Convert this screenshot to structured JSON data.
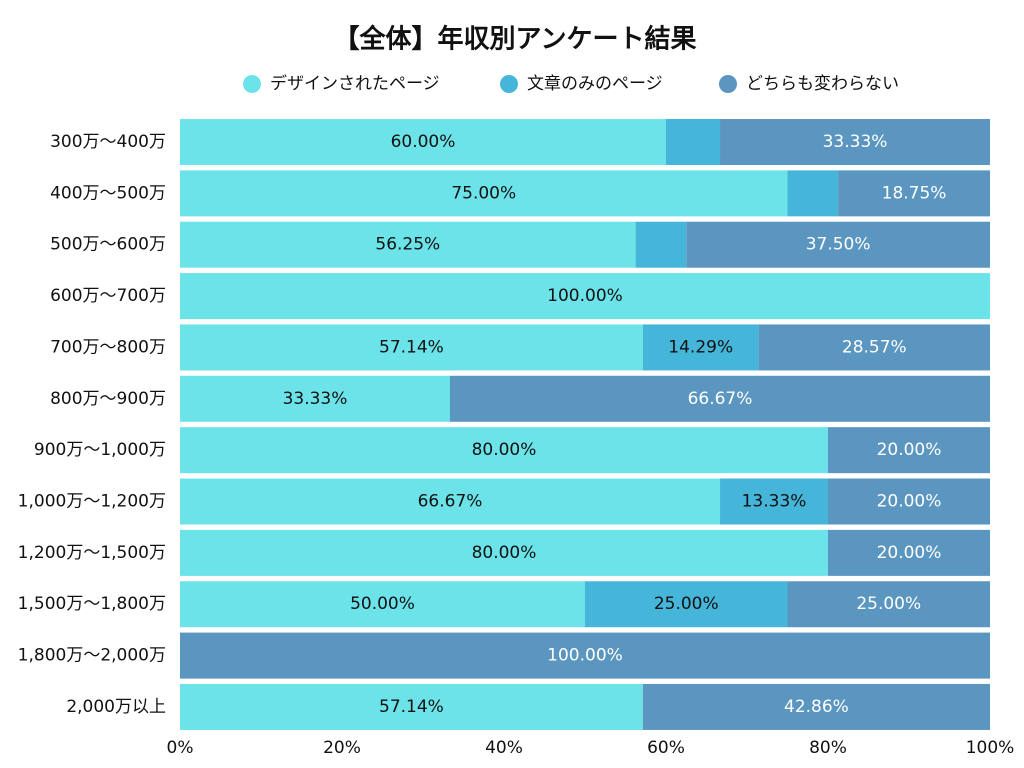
{
  "chart_data": {
    "type": "stacked-barh",
    "title": "【全体】年収別アンケート結果",
    "categories": [
      "300万〜400万",
      "400万〜500万",
      "500万〜600万",
      "600万〜700万",
      "700万〜800万",
      "800万〜900万",
      "900万〜1,000万",
      "1,000万〜1,200万",
      "1,200万〜1,500万",
      "1,500万〜1,800万",
      "1,800万〜2,000万",
      "2,000万以上"
    ],
    "series": [
      {
        "name": "デザインされたページ",
        "color": "#6ce3e9",
        "label_color": "#111111",
        "values": [
          60,
          75,
          56.25,
          100,
          57.14,
          33.33,
          80,
          66.67,
          80,
          50,
          0,
          57.14
        ],
        "value_labels": [
          "60.00%",
          "75.00%",
          "56.25%",
          "100.00%",
          "57.14%",
          "33.33%",
          "80.00%",
          "66.67%",
          "80.00%",
          "50.00%",
          null,
          "57.14%"
        ]
      },
      {
        "name": "文章のみのページ",
        "color": "#45b6d9",
        "label_color": "#111111",
        "values": [
          6.67,
          6.25,
          6.25,
          0,
          14.29,
          0,
          0,
          13.33,
          0,
          25,
          0,
          0
        ],
        "value_labels": [
          null,
          null,
          null,
          null,
          "14.29%",
          null,
          null,
          "13.33%",
          null,
          "25.00%",
          null,
          null
        ]
      },
      {
        "name": "どちらも変わらない",
        "color": "#5b96c0",
        "label_color": "#ffffff",
        "values": [
          33.33,
          18.75,
          37.5,
          0,
          28.57,
          66.67,
          20,
          20,
          20,
          25,
          100,
          42.86
        ],
        "value_labels": [
          "33.33%",
          "18.75%",
          "37.50%",
          null,
          "28.57%",
          "66.67%",
          "20.00%",
          "20.00%",
          "20.00%",
          "25.00%",
          "100.00%",
          "42.86%"
        ]
      }
    ],
    "xlim": [
      0,
      100
    ],
    "xticks": [
      {
        "value": 0,
        "label": "0%"
      },
      {
        "value": 20,
        "label": "20%"
      },
      {
        "value": 40,
        "label": "40%"
      },
      {
        "value": 60,
        "label": "60%"
      },
      {
        "value": 80,
        "label": "80%"
      },
      {
        "value": 100,
        "label": "100%"
      }
    ],
    "legend": "top"
  }
}
